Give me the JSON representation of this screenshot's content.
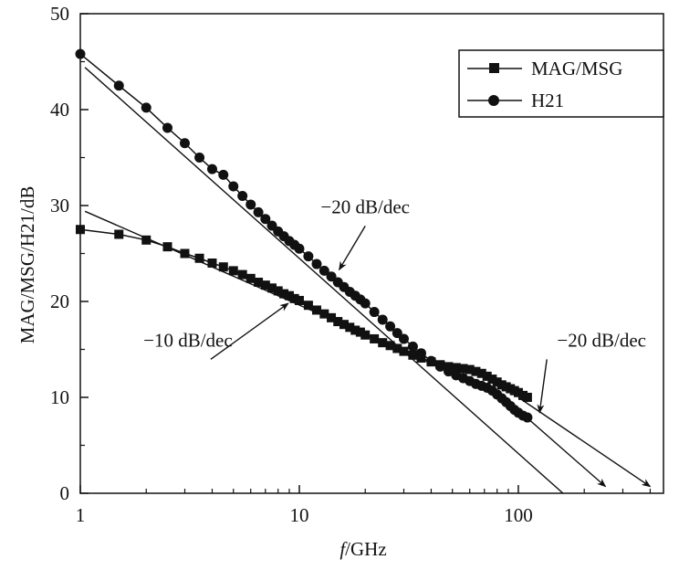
{
  "chart_data": {
    "type": "line",
    "xlabel_italic": "f",
    "xlabel_rest": "/GHz",
    "ylabel": "MAG/MSG/H21/dB",
    "x_scale": "log",
    "xlim": [
      1,
      460
    ],
    "ylim": [
      0,
      50
    ],
    "x_ticks": [
      1,
      10,
      100
    ],
    "x_tick_labels": [
      "1",
      "10",
      "100"
    ],
    "y_ticks": [
      0,
      10,
      20,
      30,
      40,
      50
    ],
    "y_tick_labels": [
      "0",
      "10",
      "20",
      "30",
      "40",
      "50"
    ],
    "grid": false,
    "legend_position": "top-right",
    "legend": [
      {
        "label": "MAG/MSG",
        "marker": "square"
      },
      {
        "label": "H21",
        "marker": "circle"
      }
    ],
    "series": [
      {
        "name": "MAG/MSG",
        "marker": "square",
        "x": [
          1,
          1.5,
          2,
          2.5,
          3,
          3.5,
          4,
          4.5,
          5,
          5.5,
          6,
          6.5,
          7,
          7.5,
          8,
          8.5,
          9,
          9.5,
          10,
          11,
          12,
          13,
          14,
          15,
          16,
          17,
          18,
          19,
          20,
          22,
          24,
          26,
          28,
          30,
          33,
          36,
          40,
          44,
          48,
          52,
          56,
          60,
          64,
          68,
          72,
          76,
          80,
          84,
          88,
          92,
          96,
          100,
          105,
          110
        ],
        "y": [
          27.5,
          27.0,
          26.4,
          25.7,
          25.0,
          24.5,
          24.0,
          23.6,
          23.2,
          22.8,
          22.4,
          22.0,
          21.7,
          21.4,
          21.1,
          20.8,
          20.6,
          20.3,
          20.1,
          19.6,
          19.1,
          18.7,
          18.3,
          17.9,
          17.6,
          17.3,
          17.0,
          16.8,
          16.5,
          16.1,
          15.7,
          15.4,
          15.1,
          14.8,
          14.4,
          14.1,
          13.7,
          13.4,
          13.2,
          13.1,
          13.0,
          12.9,
          12.7,
          12.5,
          12.2,
          11.9,
          11.6,
          11.3,
          11.1,
          10.9,
          10.7,
          10.5,
          10.2,
          10.0
        ]
      },
      {
        "name": "H21",
        "marker": "circle",
        "x": [
          1,
          1.5,
          2,
          2.5,
          3,
          3.5,
          4,
          4.5,
          5,
          5.5,
          6,
          6.5,
          7,
          7.5,
          8,
          8.5,
          9,
          9.5,
          10,
          11,
          12,
          13,
          14,
          15,
          16,
          17,
          18,
          19,
          20,
          22,
          24,
          26,
          28,
          30,
          33,
          36,
          40,
          44,
          48,
          52,
          56,
          60,
          64,
          68,
          72,
          76,
          80,
          84,
          88,
          92,
          96,
          100,
          105,
          110
        ],
        "y": [
          45.8,
          42.5,
          40.2,
          38.1,
          36.5,
          35.0,
          33.8,
          33.2,
          32.0,
          31.0,
          30.1,
          29.3,
          28.6,
          27.9,
          27.3,
          26.8,
          26.3,
          25.9,
          25.5,
          24.7,
          23.9,
          23.2,
          22.6,
          22.0,
          21.5,
          21.0,
          20.6,
          20.2,
          19.8,
          18.9,
          18.1,
          17.4,
          16.7,
          16.1,
          15.3,
          14.6,
          13.8,
          13.2,
          12.7,
          12.3,
          12.0,
          11.7,
          11.4,
          11.2,
          11.0,
          10.7,
          10.3,
          9.9,
          9.5,
          9.1,
          8.7,
          8.4,
          8.1,
          7.9
        ]
      }
    ],
    "fit_lines": [
      {
        "from": [
          1.05,
          44.4
        ],
        "to": [
          400,
          -8.1
        ]
      },
      {
        "from": [
          1.05,
          29.4
        ],
        "to": [
          80,
          10.6
        ]
      },
      {
        "from": [
          80,
          10.6
        ],
        "to": [
          250,
          0.7
        ],
        "arrow": true
      },
      {
        "from": [
          100,
          10.0
        ],
        "to": [
          400,
          0.7
        ],
        "arrow": true
      }
    ],
    "annotations": [
      {
        "text": "−20 dB/dec",
        "x": 20,
        "y": 29.2,
        "arrow_to": [
          15.2,
          23.3
        ]
      },
      {
        "text": "−10 dB/dec",
        "x": 3.1,
        "y": 15.3,
        "arrow_to": [
          8.9,
          19.8
        ]
      },
      {
        "text": "−20 dB/dec",
        "x": 240,
        "y": 15.3,
        "arrow_to": [
          125,
          8.4
        ]
      }
    ]
  }
}
